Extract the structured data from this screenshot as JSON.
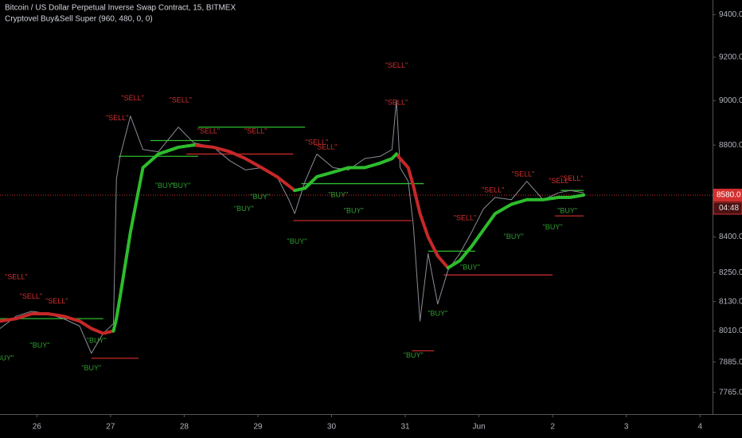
{
  "chart_data": {
    "type": "line",
    "title": "Bitcoin / US Dollar Perpetual Inverse Swap Contract, 15, BITMEX",
    "subtitle": "Cryptovel Buy&Sell Super (960, 480, 0, 0)",
    "log": true,
    "grid": false,
    "xlim": [
      25.5,
      35.17
    ],
    "ylim": [
      7680,
      9470
    ],
    "xticks": [
      26,
      27,
      28,
      29,
      30,
      31,
      {
        "value": 32,
        "label": "Jun"
      },
      {
        "value": 33,
        "label": "2"
      },
      {
        "value": 34,
        "label": "3"
      },
      {
        "value": 35,
        "label": "4"
      }
    ],
    "yticks": [
      {
        "value": 9400,
        "label": "9400.0"
      },
      {
        "value": 9200,
        "label": "9200.0"
      },
      {
        "value": 9000,
        "label": "9000.0"
      },
      {
        "value": 8800,
        "label": "8800.0"
      },
      {
        "value": 8400,
        "label": "8400.0"
      },
      {
        "value": 8250,
        "label": "8250.0"
      },
      {
        "value": 8130,
        "label": "8130.0"
      },
      {
        "value": 8010,
        "label": "8010.0"
      },
      {
        "value": 7885,
        "label": "7885.0"
      },
      {
        "value": 7765,
        "label": "7765.0"
      }
    ],
    "last_price": {
      "value": 8580,
      "label": "8580.0",
      "color": "#d32f2f"
    },
    "countdown": "04:48",
    "x": [
      25.5,
      25.72,
      25.93,
      26.15,
      26.36,
      26.58,
      26.74,
      26.9,
      27.04,
      27.08,
      27.13,
      27.27,
      27.44,
      27.65,
      27.92,
      28.13,
      28.4,
      28.62,
      28.83,
      29.05,
      29.26,
      29.42,
      29.5,
      29.64,
      29.8,
      30.02,
      30.23,
      30.45,
      30.66,
      30.82,
      30.88,
      30.93,
      31.04,
      31.11,
      31.2,
      31.31,
      31.44,
      31.58,
      31.74,
      31.9,
      32.06,
      32.22,
      32.44,
      32.65,
      32.87,
      33.08,
      33.24,
      33.42
    ],
    "series": [
      {
        "color": "#8a8d96",
        "values": [
          8020,
          8070,
          8090,
          8080,
          8060,
          8030,
          7920,
          8000,
          8040,
          8650,
          8750,
          8930,
          8780,
          8770,
          8880,
          8810,
          8790,
          8730,
          8690,
          8700,
          8660,
          8560,
          8500,
          8640,
          8760,
          8700,
          8690,
          8740,
          8750,
          8780,
          9000,
          8700,
          8640,
          8450,
          8050,
          8330,
          8120,
          8260,
          8330,
          8420,
          8520,
          8570,
          8560,
          8640,
          8560,
          8590,
          8600,
          8590
        ]
      },
      {
        "color": "#c62828",
        "values": [
          8050,
          8060,
          8080,
          8080,
          8070,
          8050,
          8020,
          8000,
          8010,
          null,
          null,
          null,
          null,
          null,
          null,
          8800,
          8790,
          8770,
          8740,
          8700,
          8660,
          8620,
          8600,
          null,
          null,
          null,
          null,
          null,
          null,
          null,
          8760,
          8740,
          8700,
          8620,
          8500,
          8400,
          8320,
          8270,
          null,
          null,
          null,
          null,
          null,
          null,
          null,
          null,
          null,
          null
        ]
      },
      {
        "color": "#2dbd2d",
        "values": [
          null,
          null,
          null,
          null,
          null,
          null,
          null,
          null,
          8010,
          8060,
          8150,
          8420,
          8700,
          8760,
          8790,
          8800,
          null,
          null,
          null,
          null,
          null,
          null,
          8600,
          8610,
          8660,
          8680,
          8700,
          8700,
          8720,
          8740,
          8760,
          null,
          null,
          null,
          null,
          null,
          null,
          8270,
          8300,
          8360,
          8430,
          8500,
          8540,
          8560,
          8560,
          8570,
          8570,
          8580
        ]
      }
    ],
    "levels": [
      {
        "x": [
          25.5,
          26.9
        ],
        "y": 8060,
        "color": "#2dbd2d"
      },
      {
        "x": [
          26.74,
          27.38
        ],
        "y": 7900,
        "color": "#c62828"
      },
      {
        "x": [
          27.11,
          28.19
        ],
        "y": 8750,
        "color": "#2dbd2d"
      },
      {
        "x": [
          27.54,
          28.35
        ],
        "y": 8820,
        "color": "#2dbd2d"
      },
      {
        "x": [
          28.19,
          29.64
        ],
        "y": 8880,
        "color": "#2dbd2d"
      },
      {
        "x": [
          28.03,
          29.48
        ],
        "y": 8760,
        "color": "#c62828"
      },
      {
        "x": [
          29.48,
          31.09
        ],
        "y": 8470,
        "color": "#c62828"
      },
      {
        "x": [
          29.59,
          31.25
        ],
        "y": 8630,
        "color": "#2dbd2d"
      },
      {
        "x": [
          31.09,
          31.39
        ],
        "y": 7930,
        "color": "#c62828"
      },
      {
        "x": [
          31.52,
          33.0
        ],
        "y": 8240,
        "color": "#c62828"
      },
      {
        "x": [
          31.31,
          31.95
        ],
        "y": 8340,
        "color": "#2dbd2d"
      },
      {
        "x": [
          33.03,
          33.42
        ],
        "y": 8490,
        "color": "#c62828"
      },
      {
        "x": [
          33.11,
          33.42
        ],
        "y": 8600,
        "color": "#2dbd2d"
      }
    ],
    "annotations": [
      {
        "text": "\"SELL\"",
        "x": 25.72,
        "y": 8230,
        "color": "#d32f2f"
      },
      {
        "text": "\"SELL\"",
        "x": 25.92,
        "y": 8150,
        "color": "#d32f2f"
      },
      {
        "text": "\"SELL\"",
        "x": 26.27,
        "y": 8130,
        "color": "#d32f2f"
      },
      {
        "text": "\"BUY\"",
        "x": 25.55,
        "y": 7900,
        "color": "#2e9e2e"
      },
      {
        "text": "\"BUY\"",
        "x": 26.04,
        "y": 7950,
        "color": "#2e9e2e"
      },
      {
        "text": "\"BUY\"",
        "x": 26.74,
        "y": 7860,
        "color": "#2e9e2e"
      },
      {
        "text": "\"BUY\"",
        "x": 26.81,
        "y": 7970,
        "color": "#2e9e2e"
      },
      {
        "text": "\"SELL\"",
        "x": 27.09,
        "y": 8920,
        "color": "#d32f2f"
      },
      {
        "text": "\"SELL\"",
        "x": 27.3,
        "y": 9010,
        "color": "#d32f2f"
      },
      {
        "text": "\"SELL\"",
        "x": 27.95,
        "y": 9000,
        "color": "#d32f2f"
      },
      {
        "text": "\"BUY\"",
        "x": 27.74,
        "y": 8620,
        "color": "#2e9e2e"
      },
      {
        "text": "\"BUY\"",
        "x": 27.95,
        "y": 8620,
        "color": "#2e9e2e"
      },
      {
        "text": "\"SELL\"",
        "x": 28.33,
        "y": 8860,
        "color": "#d32f2f"
      },
      {
        "text": "\"SELL\"",
        "x": 28.97,
        "y": 8860,
        "color": "#d32f2f"
      },
      {
        "text": "\"BUY\"",
        "x": 28.81,
        "y": 8520,
        "color": "#2e9e2e"
      },
      {
        "text": "\"BUY\"",
        "x": 29.03,
        "y": 8570,
        "color": "#2e9e2e"
      },
      {
        "text": "\"BUY\"",
        "x": 29.53,
        "y": 8380,
        "color": "#2e9e2e"
      },
      {
        "text": "\"SELL\"",
        "x": 29.8,
        "y": 8810,
        "color": "#d32f2f"
      },
      {
        "text": "\"SELL\"",
        "x": 29.92,
        "y": 8790,
        "color": "#d32f2f"
      },
      {
        "text": "\"BUY\"",
        "x": 30.09,
        "y": 8580,
        "color": "#2e9e2e"
      },
      {
        "text": "\"BUY\"",
        "x": 30.3,
        "y": 8510,
        "color": "#2e9e2e"
      },
      {
        "text": "\"SELL\"",
        "x": 30.88,
        "y": 9160,
        "color": "#d32f2f"
      },
      {
        "text": "\"SELL\"",
        "x": 30.88,
        "y": 8990,
        "color": "#d32f2f"
      },
      {
        "text": "\"BUY\"",
        "x": 31.11,
        "y": 7910,
        "color": "#2e9e2e"
      },
      {
        "text": "\"BUY\"",
        "x": 31.44,
        "y": 8080,
        "color": "#2e9e2e"
      },
      {
        "text": "\"BUY\"",
        "x": 31.88,
        "y": 8270,
        "color": "#2e9e2e"
      },
      {
        "text": "\"SELL\"",
        "x": 31.81,
        "y": 8480,
        "color": "#d32f2f"
      },
      {
        "text": "\"SELL\"",
        "x": 32.19,
        "y": 8600,
        "color": "#d32f2f"
      },
      {
        "text": "\"SELL\"",
        "x": 32.6,
        "y": 8670,
        "color": "#d32f2f"
      },
      {
        "text": "\"BUY\"",
        "x": 32.47,
        "y": 8400,
        "color": "#2e9e2e"
      },
      {
        "text": "\"BUY\"",
        "x": 33.0,
        "y": 8440,
        "color": "#2e9e2e"
      },
      {
        "text": "\"BUY\"",
        "x": 33.2,
        "y": 8510,
        "color": "#2e9e2e"
      },
      {
        "text": "\"SELL\"",
        "x": 33.1,
        "y": 8640,
        "color": "#d32f2f"
      },
      {
        "text": "\"SELL\"",
        "x": 33.26,
        "y": 8650,
        "color": "#d32f2f"
      }
    ]
  }
}
